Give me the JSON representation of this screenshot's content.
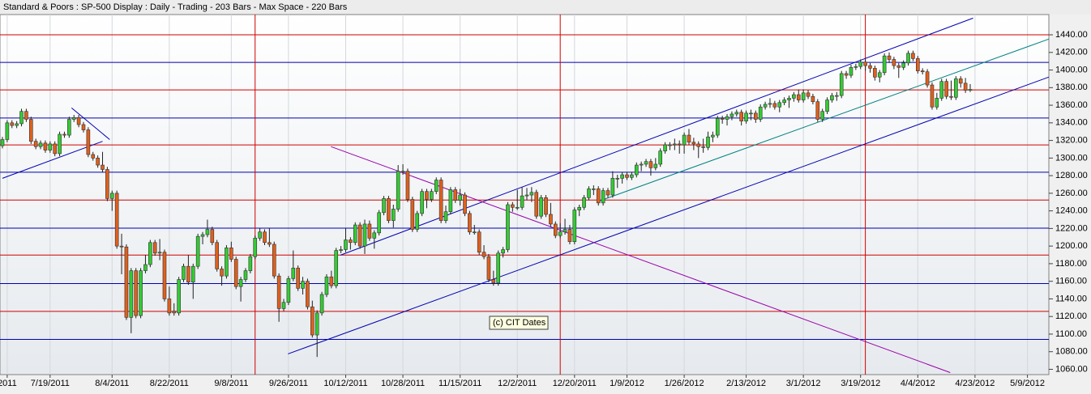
{
  "chart_data": {
    "type": "candlestick",
    "title": "Standard & Poors : SP-500 Display :  Daily  - Trading - 203 Bars -  Max Space - 220 Bars",
    "annotation": "(c) CIT Dates",
    "up_color": "#33cc33",
    "down_color": "#e0601c",
    "xlim": [
      0,
      220
    ],
    "ylim": [
      1054,
      1463
    ],
    "xticks": [
      {
        "value": 1,
        "label": "2011"
      },
      {
        "value": 10,
        "label": "7/19/2011"
      },
      {
        "value": 23,
        "label": "8/4/2011"
      },
      {
        "value": 35,
        "label": "8/22/2011"
      },
      {
        "value": 48,
        "label": "9/8/2011"
      },
      {
        "value": 60,
        "label": "9/26/2011"
      },
      {
        "value": 72,
        "label": "10/12/2011"
      },
      {
        "value": 84,
        "label": "10/28/2011"
      },
      {
        "value": 96,
        "label": "11/15/2011"
      },
      {
        "value": 108,
        "label": "12/2/2011"
      },
      {
        "value": 120,
        "label": "12/20/2011"
      },
      {
        "value": 131,
        "label": "1/9/2012"
      },
      {
        "value": 143,
        "label": "1/26/2012"
      },
      {
        "value": 156,
        "label": "2/13/2012"
      },
      {
        "value": 168,
        "label": "3/1/2012"
      },
      {
        "value": 180,
        "label": "3/19/2012"
      },
      {
        "value": 192,
        "label": "4/4/2012"
      },
      {
        "value": 204,
        "label": "4/23/2012"
      },
      {
        "value": 215,
        "label": "5/9/2012"
      }
    ],
    "yticks": [
      {
        "value": 1060,
        "label": "1060.00"
      },
      {
        "value": 1080,
        "label": "1080.00"
      },
      {
        "value": 1100,
        "label": "1100.00"
      },
      {
        "value": 1120,
        "label": "1120.00"
      },
      {
        "value": 1140,
        "label": "1140.00"
      },
      {
        "value": 1160,
        "label": "1160.00"
      },
      {
        "value": 1180,
        "label": "1180.00"
      },
      {
        "value": 1200,
        "label": "1200.00"
      },
      {
        "value": 1220,
        "label": "1220.00"
      },
      {
        "value": 1240,
        "label": "1240.00"
      },
      {
        "value": 1260,
        "label": "1260.00"
      },
      {
        "value": 1280,
        "label": "1280.00"
      },
      {
        "value": 1300,
        "label": "1300.00"
      },
      {
        "value": 1320,
        "label": "1320.00"
      },
      {
        "value": 1340,
        "label": "1340.00"
      },
      {
        "value": 1360,
        "label": "1360.00"
      },
      {
        "value": 1380,
        "label": "1380.00"
      },
      {
        "value": 1400,
        "label": "1400.00"
      },
      {
        "value": 1420,
        "label": "1420.00"
      },
      {
        "value": 1440,
        "label": "1440.00"
      }
    ],
    "levels": [
      {
        "value": 1440,
        "color": "#d00000"
      },
      {
        "value": 1408.7,
        "color": "#0000b0"
      },
      {
        "value": 1377.4,
        "color": "#d00000"
      },
      {
        "value": 1345.5,
        "color": "#0000b0"
      },
      {
        "value": 1314.9,
        "color": "#d00000"
      },
      {
        "value": 1283.9,
        "color": "#0000b0"
      },
      {
        "value": 1252.3,
        "color": "#d00000"
      },
      {
        "value": 1220.4,
        "color": "#0000b0"
      },
      {
        "value": 1189.8,
        "color": "#d00000"
      },
      {
        "value": 1157.4,
        "color": "#0000b0"
      },
      {
        "value": 1125.8,
        "color": "#d00000"
      },
      {
        "value": 1094,
        "color": "#0000b0"
      }
    ],
    "time_lines": {
      "color": "#d00000",
      "x": [
        53,
        117,
        181
      ]
    },
    "trendlines": [
      {
        "color": "#0000b0",
        "x": [
          0,
          21
        ],
        "y": [
          1277,
          1319
        ]
      },
      {
        "color": "#0000b0",
        "x": [
          14.5,
          22.5
        ],
        "y": [
          1357,
          1321
        ]
      },
      {
        "color": "#0000b0",
        "x": [
          70.9,
          203.6
        ],
        "y": [
          1189.7,
          1459
        ]
      },
      {
        "color": "#0000b0",
        "x": [
          59.9,
          219.6
        ],
        "y": [
          1077.5,
          1392.2
        ]
      },
      {
        "color": "#008080",
        "x": [
          125.3,
          219.6
        ],
        "y": [
          1251.4,
          1435.4
        ]
      },
      {
        "color": "#9900aa",
        "x": [
          68.9,
          198.8
        ],
        "y": [
          1313,
          1056.3
        ]
      }
    ],
    "candles": [
      [
        1314,
        1324,
        1311,
        1321
      ],
      [
        1321,
        1343,
        1318,
        1340
      ],
      [
        1340,
        1343,
        1334,
        1337
      ],
      [
        1337,
        1342,
        1334,
        1339
      ],
      [
        1339,
        1356,
        1336,
        1353
      ],
      [
        1353,
        1356,
        1341,
        1344
      ],
      [
        1344,
        1347,
        1316,
        1319
      ],
      [
        1319,
        1322,
        1310,
        1313
      ],
      [
        1313,
        1320,
        1310,
        1317
      ],
      [
        1317,
        1320,
        1306,
        1309
      ],
      [
        1309,
        1319,
        1306,
        1316
      ],
      [
        1316,
        1319,
        1302,
        1305
      ],
      [
        1305,
        1330,
        1302,
        1327
      ],
      [
        1327,
        1330,
        1323,
        1326
      ],
      [
        1326,
        1347,
        1323,
        1344
      ],
      [
        1344,
        1349,
        1341,
        1346
      ],
      [
        1346,
        1349,
        1335,
        1338
      ],
      [
        1338,
        1341,
        1329,
        1332
      ],
      [
        1332,
        1335,
        1301,
        1304
      ],
      [
        1304,
        1307,
        1297,
        1300
      ],
      [
        1300,
        1303,
        1289,
        1292
      ],
      [
        1292,
        1307,
        1284,
        1287
      ],
      [
        1287,
        1290,
        1251,
        1254
      ],
      [
        1254,
        1263,
        1240,
        1260
      ],
      [
        1260,
        1263,
        1197,
        1200
      ],
      [
        1200,
        1214,
        1168,
        1199
      ],
      [
        1199,
        1202,
        1116,
        1119
      ],
      [
        1119,
        1175,
        1101,
        1172
      ],
      [
        1172,
        1175,
        1118,
        1121
      ],
      [
        1121,
        1175,
        1118,
        1172
      ],
      [
        1172,
        1190,
        1169,
        1179
      ],
      [
        1179,
        1207,
        1176,
        1204
      ],
      [
        1204,
        1207,
        1189,
        1192
      ],
      [
        1192,
        1208,
        1184,
        1193
      ],
      [
        1193,
        1196,
        1137,
        1140
      ],
      [
        1140,
        1154,
        1121,
        1124
      ],
      [
        1126,
        1135,
        1121,
        1124
      ],
      [
        1124,
        1165,
        1121,
        1162
      ],
      [
        1162,
        1180,
        1159,
        1177
      ],
      [
        1177,
        1190,
        1156,
        1159
      ],
      [
        1159,
        1180,
        1140,
        1177
      ],
      [
        1177,
        1214,
        1174,
        1211
      ],
      [
        1211,
        1216,
        1202,
        1213
      ],
      [
        1213,
        1230,
        1210,
        1219
      ],
      [
        1219,
        1222,
        1201,
        1204
      ],
      [
        1204,
        1207,
        1171,
        1174
      ],
      [
        1174,
        1177,
        1155,
        1166
      ],
      [
        1166,
        1201,
        1163,
        1198
      ],
      [
        1198,
        1205,
        1182,
        1185
      ],
      [
        1185,
        1188,
        1151,
        1154
      ],
      [
        1154,
        1165,
        1137,
        1162
      ],
      [
        1162,
        1175,
        1159,
        1172
      ],
      [
        1172,
        1191,
        1169,
        1188
      ],
      [
        1188,
        1212,
        1185,
        1209
      ],
      [
        1209,
        1220,
        1206,
        1216
      ],
      [
        1216,
        1219,
        1201,
        1204
      ],
      [
        1204,
        1220,
        1199,
        1202
      ],
      [
        1202,
        1205,
        1163,
        1166
      ],
      [
        1166,
        1169,
        1114,
        1129
      ],
      [
        1129,
        1140,
        1126,
        1136
      ],
      [
        1136,
        1166,
        1133,
        1163
      ],
      [
        1163,
        1195,
        1160,
        1175
      ],
      [
        1175,
        1178,
        1149,
        1152
      ],
      [
        1152,
        1165,
        1145,
        1160
      ],
      [
        1160,
        1163,
        1128,
        1131
      ],
      [
        1131,
        1138,
        1096,
        1099
      ],
      [
        1099,
        1127,
        1074,
        1124
      ],
      [
        1124,
        1148,
        1121,
        1145
      ],
      [
        1145,
        1168,
        1142,
        1165
      ],
      [
        1165,
        1172,
        1152,
        1155
      ],
      [
        1155,
        1198,
        1152,
        1195
      ],
      [
        1195,
        1200,
        1192,
        1196
      ],
      [
        1196,
        1220,
        1193,
        1207
      ],
      [
        1207,
        1210,
        1196,
        1204
      ],
      [
        1204,
        1227,
        1201,
        1224
      ],
      [
        1224,
        1227,
        1197,
        1200
      ],
      [
        1200,
        1230,
        1191,
        1225
      ],
      [
        1225,
        1229,
        1206,
        1209
      ],
      [
        1209,
        1218,
        1197,
        1215
      ],
      [
        1215,
        1241,
        1212,
        1238
      ],
      [
        1238,
        1257,
        1235,
        1254
      ],
      [
        1254,
        1257,
        1226,
        1229
      ],
      [
        1229,
        1247,
        1221,
        1242
      ],
      [
        1242,
        1292,
        1239,
        1285
      ],
      [
        1285,
        1293,
        1281,
        1285
      ],
      [
        1285,
        1288,
        1250,
        1253
      ],
      [
        1253,
        1256,
        1216,
        1219
      ],
      [
        1219,
        1240,
        1216,
        1237
      ],
      [
        1237,
        1265,
        1234,
        1262
      ],
      [
        1262,
        1265,
        1243,
        1253
      ],
      [
        1253,
        1265,
        1250,
        1262
      ],
      [
        1262,
        1278,
        1259,
        1275
      ],
      [
        1275,
        1278,
        1226,
        1229
      ],
      [
        1229,
        1246,
        1226,
        1239
      ],
      [
        1239,
        1267,
        1236,
        1264
      ],
      [
        1264,
        1267,
        1249,
        1252
      ],
      [
        1252,
        1265,
        1246,
        1258
      ],
      [
        1258,
        1261,
        1234,
        1237
      ],
      [
        1237,
        1240,
        1213,
        1216
      ],
      [
        1216,
        1224,
        1213,
        1216
      ],
      [
        1216,
        1219,
        1190,
        1193
      ],
      [
        1193,
        1201,
        1185,
        1188
      ],
      [
        1188,
        1191,
        1159,
        1162
      ],
      [
        1162,
        1172,
        1155,
        1158
      ],
      [
        1158,
        1195,
        1155,
        1192
      ],
      [
        1192,
        1199,
        1187,
        1196
      ],
      [
        1196,
        1250,
        1193,
        1247
      ],
      [
        1247,
        1250,
        1239,
        1244
      ],
      [
        1244,
        1264,
        1241,
        1244
      ],
      [
        1244,
        1267,
        1241,
        1257
      ],
      [
        1257,
        1266,
        1252,
        1258
      ],
      [
        1258,
        1267,
        1250,
        1261
      ],
      [
        1261,
        1264,
        1231,
        1234
      ],
      [
        1234,
        1258,
        1231,
        1255
      ],
      [
        1255,
        1258,
        1233,
        1236
      ],
      [
        1236,
        1249,
        1222,
        1225
      ],
      [
        1225,
        1228,
        1209,
        1212
      ],
      [
        1212,
        1226,
        1209,
        1216
      ],
      [
        1216,
        1231,
        1213,
        1219
      ],
      [
        1219,
        1224,
        1202,
        1205
      ],
      [
        1205,
        1244,
        1202,
        1241
      ],
      [
        1241,
        1247,
        1234,
        1244
      ],
      [
        1244,
        1258,
        1241,
        1255
      ],
      [
        1255,
        1268,
        1252,
        1265
      ],
      [
        1265,
        1269,
        1258,
        1265
      ],
      [
        1265,
        1268,
        1246,
        1249
      ],
      [
        1249,
        1266,
        1246,
        1263
      ],
      [
        1263,
        1266,
        1255,
        1258
      ],
      [
        1258,
        1285,
        1255,
        1277
      ],
      [
        1277,
        1281,
        1266,
        1277
      ],
      [
        1277,
        1284,
        1271,
        1281
      ],
      [
        1281,
        1284,
        1275,
        1278
      ],
      [
        1278,
        1284,
        1275,
        1281
      ],
      [
        1281,
        1295,
        1278,
        1292
      ],
      [
        1292,
        1296,
        1285,
        1293
      ],
      [
        1293,
        1299,
        1290,
        1296
      ],
      [
        1296,
        1299,
        1280,
        1289
      ],
      [
        1289,
        1300,
        1286,
        1293
      ],
      [
        1293,
        1311,
        1290,
        1308
      ],
      [
        1308,
        1318,
        1305,
        1315
      ],
      [
        1315,
        1318,
        1309,
        1315
      ],
      [
        1315,
        1322,
        1309,
        1316
      ],
      [
        1316,
        1320,
        1305,
        1315
      ],
      [
        1315,
        1329,
        1305,
        1326
      ],
      [
        1326,
        1333,
        1315,
        1318
      ],
      [
        1318,
        1323,
        1309,
        1316
      ],
      [
        1316,
        1319,
        1300,
        1313
      ],
      [
        1313,
        1322,
        1306,
        1312
      ],
      [
        1312,
        1330,
        1309,
        1324
      ],
      [
        1324,
        1330,
        1318,
        1326
      ],
      [
        1326,
        1348,
        1323,
        1345
      ],
      [
        1345,
        1348,
        1339,
        1344
      ],
      [
        1344,
        1350,
        1337,
        1347
      ],
      [
        1347,
        1353,
        1343,
        1350
      ],
      [
        1350,
        1355,
        1347,
        1352
      ],
      [
        1352,
        1355,
        1337,
        1342
      ],
      [
        1342,
        1354,
        1339,
        1351
      ],
      [
        1351,
        1355,
        1343,
        1351
      ],
      [
        1351,
        1354,
        1340,
        1344
      ],
      [
        1344,
        1361,
        1341,
        1358
      ],
      [
        1358,
        1364,
        1355,
        1361
      ],
      [
        1361,
        1368,
        1357,
        1362
      ],
      [
        1362,
        1365,
        1355,
        1358
      ],
      [
        1358,
        1366,
        1352,
        1363
      ],
      [
        1363,
        1369,
        1360,
        1366
      ],
      [
        1366,
        1371,
        1357,
        1368
      ],
      [
        1368,
        1375,
        1364,
        1372
      ],
      [
        1372,
        1378,
        1363,
        1366
      ],
      [
        1366,
        1378,
        1363,
        1374
      ],
      [
        1374,
        1377,
        1367,
        1370
      ],
      [
        1370,
        1373,
        1361,
        1364
      ],
      [
        1364,
        1367,
        1341,
        1344
      ],
      [
        1344,
        1356,
        1341,
        1353
      ],
      [
        1353,
        1369,
        1350,
        1366
      ],
      [
        1366,
        1374,
        1363,
        1371
      ],
      [
        1371,
        1375,
        1365,
        1371
      ],
      [
        1371,
        1399,
        1368,
        1396
      ],
      [
        1396,
        1399,
        1390,
        1394
      ],
      [
        1394,
        1406,
        1391,
        1403
      ],
      [
        1403,
        1407,
        1400,
        1404
      ],
      [
        1404,
        1412,
        1401,
        1409
      ],
      [
        1409,
        1412,
        1399,
        1405
      ],
      [
        1405,
        1408,
        1397,
        1402
      ],
      [
        1402,
        1405,
        1388,
        1392
      ],
      [
        1392,
        1400,
        1386,
        1397
      ],
      [
        1397,
        1419,
        1394,
        1416
      ],
      [
        1416,
        1420,
        1408,
        1412
      ],
      [
        1412,
        1415,
        1401,
        1405
      ],
      [
        1405,
        1408,
        1391,
        1403
      ],
      [
        1403,
        1411,
        1400,
        1408
      ],
      [
        1408,
        1422,
        1405,
        1419
      ],
      [
        1419,
        1422,
        1410,
        1413
      ],
      [
        1413,
        1416,
        1396,
        1399
      ],
      [
        1399,
        1402,
        1395,
        1398
      ],
      [
        1398,
        1401,
        1380,
        1383
      ],
      [
        1383,
        1386,
        1355,
        1358
      ],
      [
        1358,
        1374,
        1355,
        1368
      ],
      [
        1368,
        1390,
        1365,
        1387
      ],
      [
        1387,
        1390,
        1367,
        1370
      ],
      [
        1370,
        1388,
        1366,
        1369
      ],
      [
        1369,
        1393,
        1366,
        1390
      ],
      [
        1390,
        1393,
        1380,
        1385
      ],
      [
        1385,
        1391,
        1374,
        1377
      ],
      [
        1377,
        1384,
        1375,
        1378
      ]
    ]
  }
}
